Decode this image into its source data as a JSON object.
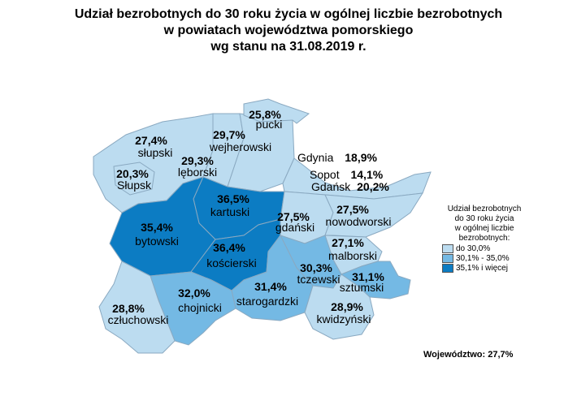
{
  "title": {
    "line1": "Udział bezrobotnych do 30 roku życia w ogólnej liczbie bezrobotnych",
    "line2": "w powiatach województwa pomorskiego",
    "line3": "wg stanu na 31.08.2019 r."
  },
  "colors": {
    "low": "#bcdcf0",
    "mid": "#74b9e4",
    "high": "#0c7cc3",
    "border": "#8aa9c1"
  },
  "counties": [
    {
      "id": "pucki",
      "name": "pucki",
      "value": "25,8%",
      "class": "low"
    },
    {
      "id": "wejherowski",
      "name": "wejherowski",
      "value": "29,7%",
      "class": "low"
    },
    {
      "id": "slupski",
      "name": "słupski",
      "value": "27,4%",
      "class": "low"
    },
    {
      "id": "slupsk",
      "name": "Słupsk",
      "value": "20,3%",
      "class": "low"
    },
    {
      "id": "leborski",
      "name": "lęborski",
      "value": "29,3%",
      "class": "low"
    },
    {
      "id": "kartuski",
      "name": "kartuski",
      "value": "36,5%",
      "class": "high"
    },
    {
      "id": "bytowski",
      "name": "bytowski",
      "value": "35,4%",
      "class": "high"
    },
    {
      "id": "gdanski",
      "name": "gdański",
      "value": "27,5%",
      "class": "low"
    },
    {
      "id": "nowodworski",
      "name": "nowodworski",
      "value": "27,5%",
      "class": "low"
    },
    {
      "id": "koscierski",
      "name": "kościerski",
      "value": "36,4%",
      "class": "high"
    },
    {
      "id": "malborski",
      "name": "malborski",
      "value": "27,1%",
      "class": "low"
    },
    {
      "id": "tczewski",
      "name": "tczewski",
      "value": "30,3%",
      "class": "mid"
    },
    {
      "id": "sztumski",
      "name": "sztumski",
      "value": "31,1%",
      "class": "mid"
    },
    {
      "id": "chojnicki",
      "name": "chojnicki",
      "value": "32,0%",
      "class": "mid"
    },
    {
      "id": "starogardzki",
      "name": "starogardzki",
      "value": "31,4%",
      "class": "mid"
    },
    {
      "id": "czluchowski",
      "name": "człuchowski",
      "value": "28,8%",
      "class": "low"
    },
    {
      "id": "kwidzynski",
      "name": "kwidzyński",
      "value": "28,9%",
      "class": "low"
    }
  ],
  "cities": [
    {
      "name": "Gdynia",
      "value": "18,9%"
    },
    {
      "name": "Sopot",
      "value": "14,1%"
    },
    {
      "name": "Gdańsk",
      "value": "20,2%"
    }
  ],
  "legend": {
    "title_lines": [
      "Udział bezrobotnych",
      "do 30 roku życia",
      "w ogólnej liczbie",
      "bezrobotnych:"
    ],
    "items": [
      {
        "label": "do 30,0%",
        "color": "#bcdcf0"
      },
      {
        "label": "30,1% - 35,0%",
        "color": "#74b9e4"
      },
      {
        "label": "35,1% i więcej",
        "color": "#0c7cc3"
      }
    ]
  },
  "total": "Województwo: 27,7%"
}
